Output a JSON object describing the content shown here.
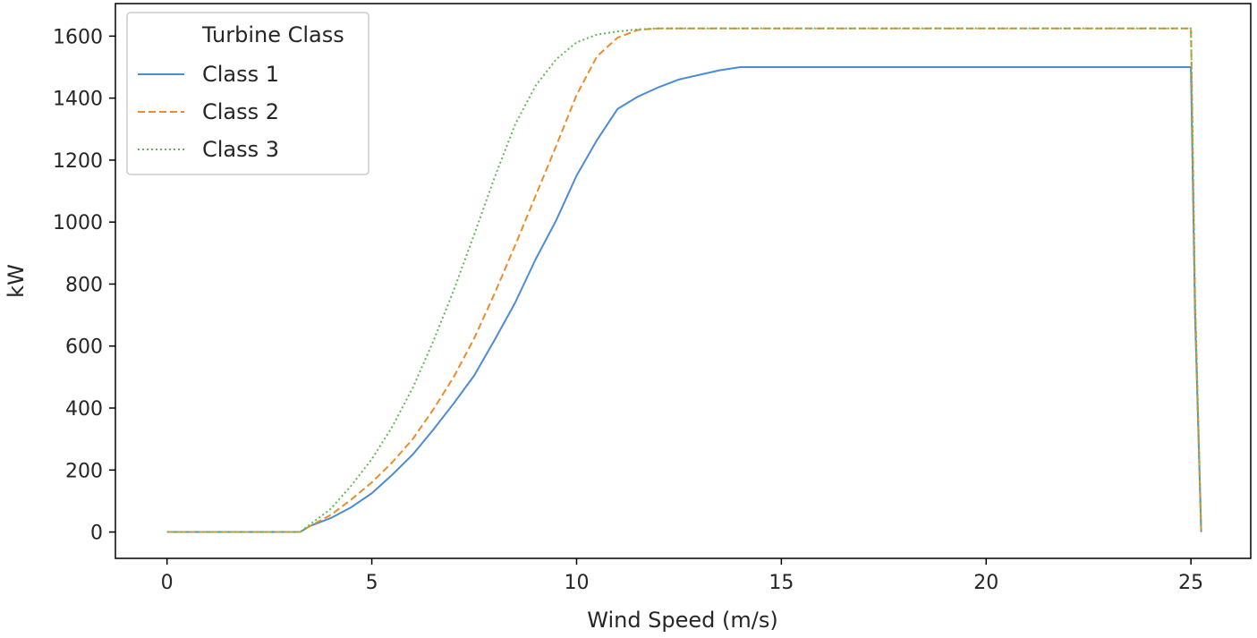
{
  "chart_data": {
    "type": "line",
    "title": "",
    "xlabel": "Wind Speed (m/s)",
    "ylabel": "kW",
    "xlim": [
      -1.26,
      26.46
    ],
    "ylim": [
      -85,
      1705
    ],
    "xticks": [
      0,
      5,
      10,
      15,
      20,
      25
    ],
    "yticks": [
      0,
      200,
      400,
      600,
      800,
      1000,
      1200,
      1400,
      1600
    ],
    "grid": false,
    "legend": {
      "title": "Turbine Class",
      "placement": "top-left"
    },
    "series": [
      {
        "name": "Class 1",
        "color": "#4c8bd6",
        "dash": "solid",
        "x": [
          0,
          3.0,
          3.25,
          3.5,
          4.0,
          4.5,
          5.0,
          5.5,
          6.0,
          6.5,
          7.0,
          7.5,
          8.0,
          8.5,
          9.0,
          9.5,
          10.0,
          10.5,
          11.0,
          11.5,
          12.0,
          12.5,
          13.0,
          13.5,
          14.0,
          15.0,
          20.0,
          24.9,
          25.0,
          25.1,
          25.25
        ],
        "y": [
          0,
          0,
          0,
          20,
          45,
          80,
          125,
          185,
          250,
          330,
          415,
          505,
          620,
          740,
          880,
          1005,
          1150,
          1265,
          1365,
          1405,
          1435,
          1460,
          1475,
          1490,
          1500,
          1500,
          1500,
          1500,
          1500,
          700,
          0
        ]
      },
      {
        "name": "Class 2",
        "color": "#ee8b2b",
        "dash": "dashed",
        "x": [
          0,
          3.0,
          3.25,
          3.5,
          4.0,
          4.5,
          5.0,
          5.5,
          6.0,
          6.5,
          7.0,
          7.5,
          8.0,
          8.5,
          9.0,
          9.5,
          10.0,
          10.5,
          11.0,
          11.5,
          12.0,
          15.0,
          20.0,
          24.9,
          25.0,
          25.1,
          25.25
        ],
        "y": [
          0,
          0,
          0,
          20,
          55,
          105,
          160,
          225,
          300,
          395,
          500,
          625,
          770,
          925,
          1085,
          1245,
          1410,
          1535,
          1595,
          1620,
          1625,
          1625,
          1625,
          1625,
          1625,
          750,
          0
        ]
      },
      {
        "name": "Class 3",
        "color": "#5fb854",
        "dash": "dotted",
        "x": [
          0,
          3.0,
          3.25,
          3.5,
          4.0,
          4.5,
          5.0,
          5.5,
          6.0,
          6.5,
          7.0,
          7.5,
          8.0,
          8.5,
          9.0,
          9.5,
          10.0,
          10.5,
          11.0,
          11.5,
          12.0,
          15.0,
          20.0,
          24.9,
          25.0,
          25.1,
          25.25
        ],
        "y": [
          0,
          0,
          0,
          25,
          75,
          150,
          235,
          340,
          465,
          615,
          780,
          960,
          1145,
          1315,
          1440,
          1525,
          1580,
          1605,
          1615,
          1622,
          1625,
          1625,
          1625,
          1625,
          1625,
          760,
          0
        ]
      }
    ]
  }
}
